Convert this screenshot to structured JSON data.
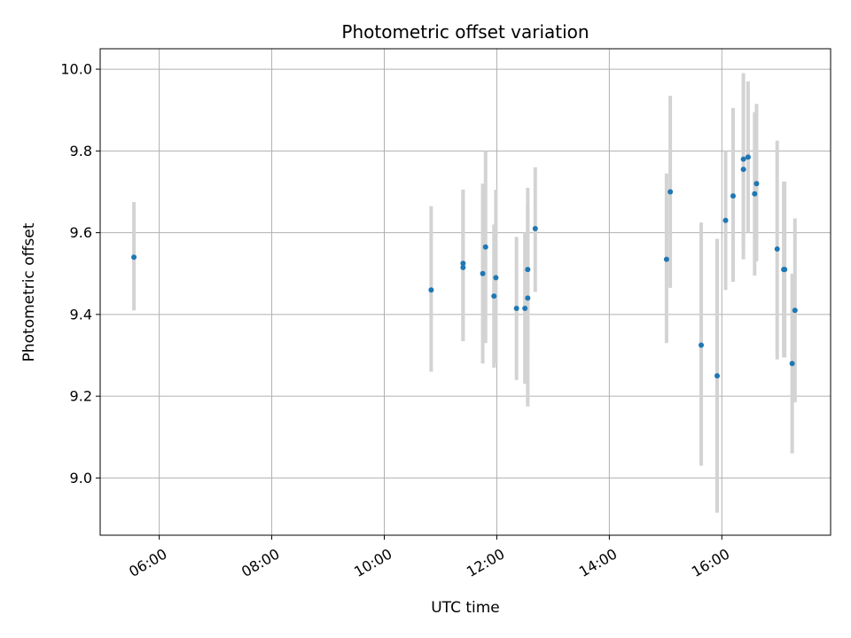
{
  "chart_data": {
    "type": "scatter",
    "title": "Photometric offset variation",
    "xlabel": "UTC time",
    "ylabel": "Photometric offset",
    "x_axis_type": "time",
    "xlim": [
      "04:57",
      "17:56"
    ],
    "ylim": [
      8.86,
      10.05
    ],
    "x_ticks": [
      "06:00",
      "08:00",
      "10:00",
      "12:00",
      "14:00",
      "16:00"
    ],
    "y_ticks": [
      9.0,
      9.2,
      9.4,
      9.6,
      9.8,
      10.0
    ],
    "y_tick_labels": [
      "9.0",
      "9.2",
      "9.4",
      "9.6",
      "9.8",
      "10.0"
    ],
    "grid": true,
    "legend": false,
    "colors": {
      "points": "#1f77b4",
      "errorbars": "#d3d3d3",
      "grid": "#b0b0b0"
    },
    "points": [
      {
        "x": "05:33",
        "y": 9.54,
        "yerr_low": 9.41,
        "yerr_high": 9.675
      },
      {
        "x": "10:50",
        "y": 9.46,
        "yerr_low": 9.26,
        "yerr_high": 9.665
      },
      {
        "x": "11:24",
        "y": 9.525,
        "yerr_low": 9.335,
        "yerr_high": 9.705
      },
      {
        "x": "11:24",
        "y": 9.515,
        "yerr_low": 9.335,
        "yerr_high": 9.705
      },
      {
        "x": "11:45",
        "y": 9.5,
        "yerr_low": 9.28,
        "yerr_high": 9.72
      },
      {
        "x": "11:48",
        "y": 9.565,
        "yerr_low": 9.33,
        "yerr_high": 9.8
      },
      {
        "x": "11:57",
        "y": 9.445,
        "yerr_low": 9.27,
        "yerr_high": 9.62
      },
      {
        "x": "11:59",
        "y": 9.49,
        "yerr_low": 9.28,
        "yerr_high": 9.705
      },
      {
        "x": "12:21",
        "y": 9.415,
        "yerr_low": 9.24,
        "yerr_high": 9.59
      },
      {
        "x": "12:30",
        "y": 9.415,
        "yerr_low": 9.23,
        "yerr_high": 9.6
      },
      {
        "x": "12:33",
        "y": 9.51,
        "yerr_low": 9.31,
        "yerr_high": 9.71
      },
      {
        "x": "12:33",
        "y": 9.44,
        "yerr_low": 9.175,
        "yerr_high": 9.67
      },
      {
        "x": "12:41",
        "y": 9.61,
        "yerr_low": 9.455,
        "yerr_high": 9.76
      },
      {
        "x": "15:01",
        "y": 9.535,
        "yerr_low": 9.33,
        "yerr_high": 9.745
      },
      {
        "x": "15:05",
        "y": 9.7,
        "yerr_low": 9.465,
        "yerr_high": 9.935
      },
      {
        "x": "15:38",
        "y": 9.325,
        "yerr_low": 9.03,
        "yerr_high": 9.625
      },
      {
        "x": "15:55",
        "y": 9.25,
        "yerr_low": 8.915,
        "yerr_high": 9.585
      },
      {
        "x": "16:04",
        "y": 9.63,
        "yerr_low": 9.46,
        "yerr_high": 9.8
      },
      {
        "x": "16:12",
        "y": 9.69,
        "yerr_low": 9.48,
        "yerr_high": 9.905
      },
      {
        "x": "16:23",
        "y": 9.78,
        "yerr_low": 9.57,
        "yerr_high": 9.99
      },
      {
        "x": "16:23",
        "y": 9.755,
        "yerr_low": 9.535,
        "yerr_high": 9.975
      },
      {
        "x": "16:28",
        "y": 9.785,
        "yerr_low": 9.6,
        "yerr_high": 9.97
      },
      {
        "x": "16:35",
        "y": 9.695,
        "yerr_low": 9.495,
        "yerr_high": 9.895
      },
      {
        "x": "16:37",
        "y": 9.72,
        "yerr_low": 9.53,
        "yerr_high": 9.915
      },
      {
        "x": "16:59",
        "y": 9.56,
        "yerr_low": 9.29,
        "yerr_high": 9.825
      },
      {
        "x": "17:06",
        "y": 9.51,
        "yerr_low": 9.295,
        "yerr_high": 9.725
      },
      {
        "x": "17:07",
        "y": 9.51,
        "yerr_low": 9.295,
        "yerr_high": 9.725
      },
      {
        "x": "17:15",
        "y": 9.28,
        "yerr_low": 9.06,
        "yerr_high": 9.5
      },
      {
        "x": "17:18",
        "y": 9.41,
        "yerr_low": 9.185,
        "yerr_high": 9.635
      }
    ]
  }
}
